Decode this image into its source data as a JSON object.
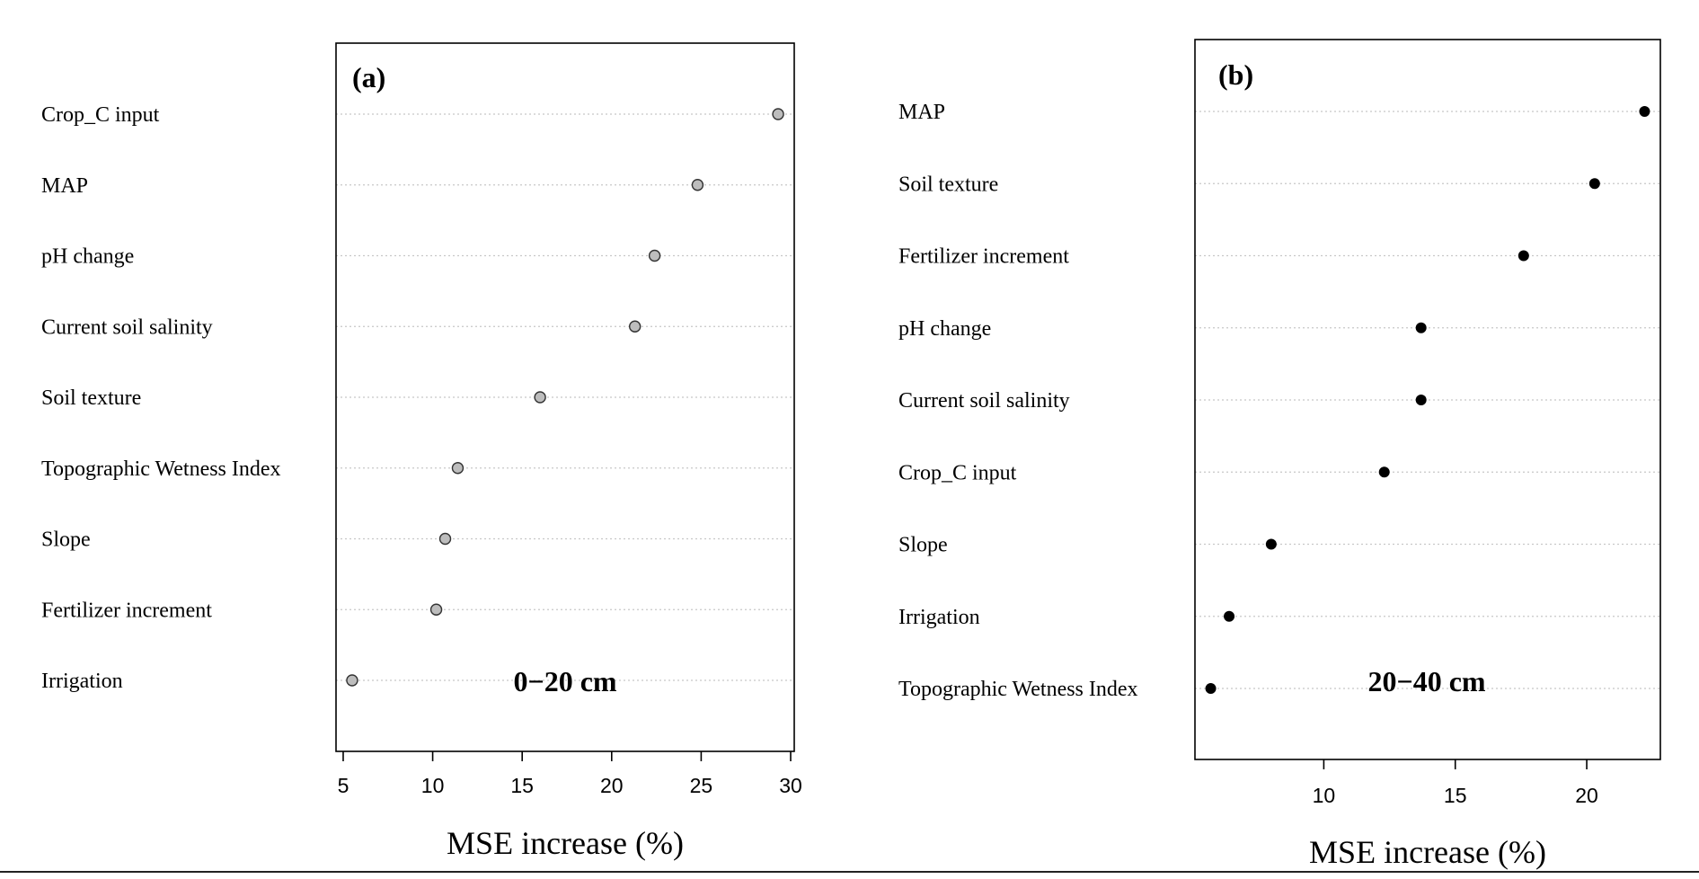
{
  "chart_data": [
    {
      "type": "dotplot",
      "panel_label": "(a)",
      "annotation": "0−20 cm",
      "xlabel": "MSE increase (%)",
      "xlim": [
        4.6,
        30.2
      ],
      "xticks": [
        5,
        10,
        15,
        20,
        25,
        30
      ],
      "grid": "horizontal dotted",
      "marker_color": "#bdbdbd",
      "categories": [
        "Crop_C input",
        "MAP",
        "pH change",
        "Current soil salinity",
        "Soil texture",
        "Topographic Wetness Index",
        "Slope",
        "Fertilizer increment",
        "Irrigation"
      ],
      "values": [
        29.3,
        24.8,
        22.4,
        21.3,
        16.0,
        11.4,
        10.7,
        10.2,
        5.5
      ]
    },
    {
      "type": "dotplot",
      "panel_label": "(b)",
      "annotation": "20−40 cm",
      "xlabel": "MSE increase (%)",
      "xlim": [
        5.1,
        22.8
      ],
      "xticks": [
        10,
        15,
        20
      ],
      "grid": "horizontal dotted",
      "marker_color": "#000000",
      "categories": [
        "MAP",
        "Soil texture",
        "Fertilizer increment",
        "pH change",
        "Current soil salinity",
        "Crop_C input",
        "Slope",
        "Irrigation",
        "Topographic Wetness Index"
      ],
      "values": [
        22.2,
        20.3,
        17.6,
        13.7,
        13.7,
        12.3,
        8.0,
        6.4,
        5.7
      ]
    }
  ]
}
